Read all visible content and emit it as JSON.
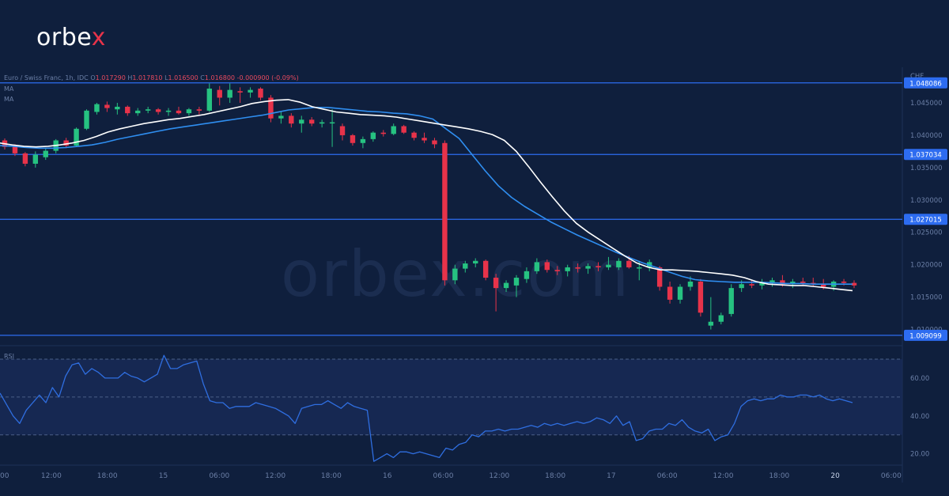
{
  "brand": {
    "name_main": "orbe",
    "name_accent": "x"
  },
  "watermark": "orbex.com",
  "legend": {
    "symbol": "Euro / Swiss Franc, 1h, IDC",
    "o_label": "O",
    "o": "1.017290",
    "h_label": "H",
    "h": "1.017810",
    "l_label": "L",
    "l": "1.016500",
    "c_label": "C",
    "c": "1.016800",
    "change": "-0.000900 (-0.09%)",
    "ma1": "MA",
    "ma2": "MA",
    "rsi": "RSI"
  },
  "colors": {
    "background": "#0f1f3d",
    "up": "#26c281",
    "down": "#e8334a",
    "ma_fast": "#ffffff",
    "ma_slow": "#2f8ef0",
    "rsi_line": "#2f6ee0",
    "level_line": "#2d6cf0",
    "label_bg": "#2d6cf0",
    "axis_text": "#6b7fa6"
  },
  "chart_data": [
    {
      "type": "candlestick",
      "title": "",
      "ylabel": "CHF",
      "ylim": [
        1.0075,
        1.0505
      ],
      "yticks": [
        "1.045000",
        "1.040000",
        "1.035000",
        "1.030000",
        "1.025000",
        "1.020000",
        "1.015000",
        "1.010000"
      ],
      "x_tick_labels": [
        "00",
        "12:00",
        "18:00",
        "15",
        "06:00",
        "12:00",
        "18:00",
        "16",
        "06:00",
        "12:00",
        "18:00",
        "17",
        "06:00",
        "12:00",
        "18:00",
        "20",
        "06:00"
      ],
      "x_tick_index": [
        0,
        11,
        23,
        35,
        47,
        59,
        71,
        83,
        95,
        107,
        119,
        131,
        143,
        155,
        167,
        179,
        191
      ],
      "horizontal_levels": [
        {
          "value": 1.048086,
          "label": "1.048086"
        },
        {
          "value": 1.037034,
          "label": "1.037034"
        },
        {
          "value": 1.027015,
          "label": "1.027015"
        },
        {
          "value": 1.009099,
          "label": "1.009099"
        }
      ],
      "candles": [
        [
          1.0392,
          1.0395,
          1.0378,
          1.0382
        ],
        [
          1.0384,
          1.0386,
          1.0368,
          1.0372
        ],
        [
          1.0372,
          1.0374,
          1.0352,
          1.0356
        ],
        [
          1.0356,
          1.0375,
          1.035,
          1.037
        ],
        [
          1.0366,
          1.038,
          1.0362,
          1.0376
        ],
        [
          1.0376,
          1.0394,
          1.0372,
          1.0392
        ],
        [
          1.0392,
          1.0396,
          1.038,
          1.0384
        ],
        [
          1.0384,
          1.0412,
          1.0382,
          1.041
        ],
        [
          1.041,
          1.044,
          1.0408,
          1.0438
        ],
        [
          1.0436,
          1.045,
          1.0432,
          1.0448
        ],
        [
          1.0447,
          1.0452,
          1.0436,
          1.0442
        ],
        [
          1.044,
          1.045,
          1.0432,
          1.0444
        ],
        [
          1.0444,
          1.0446,
          1.043,
          1.0434
        ],
        [
          1.0434,
          1.0442,
          1.043,
          1.0438
        ],
        [
          1.0438,
          1.0444,
          1.0434,
          1.044
        ],
        [
          1.044,
          1.0442,
          1.0432,
          1.0436
        ],
        [
          1.0436,
          1.0442,
          1.043,
          1.0438
        ],
        [
          1.0438,
          1.0444,
          1.0432,
          1.0434
        ],
        [
          1.0434,
          1.0442,
          1.043,
          1.044
        ],
        [
          1.044,
          1.0444,
          1.0432,
          1.0438
        ],
        [
          1.0438,
          1.048,
          1.0436,
          1.0472
        ],
        [
          1.047,
          1.0476,
          1.0446,
          1.0458
        ],
        [
          1.0458,
          1.048,
          1.045,
          1.047
        ],
        [
          1.0468,
          1.0474,
          1.045,
          1.0466
        ],
        [
          1.0466,
          1.0474,
          1.0458,
          1.047
        ],
        [
          1.0472,
          1.0474,
          1.0454,
          1.0458
        ],
        [
          1.0458,
          1.0462,
          1.042,
          1.0426
        ],
        [
          1.0426,
          1.0436,
          1.0418,
          1.043
        ],
        [
          1.043,
          1.0434,
          1.0412,
          1.0418
        ],
        [
          1.0418,
          1.043,
          1.0404,
          1.0424
        ],
        [
          1.0424,
          1.0428,
          1.0414,
          1.0418
        ],
        [
          1.0418,
          1.0424,
          1.0412,
          1.042
        ],
        [
          1.042,
          1.044,
          1.0382,
          1.042
        ],
        [
          1.0414,
          1.0418,
          1.0392,
          1.04
        ],
        [
          1.04,
          1.0402,
          1.0384,
          1.0388
        ],
        [
          1.0388,
          1.0398,
          1.038,
          1.0394
        ],
        [
          1.0394,
          1.0406,
          1.039,
          1.0404
        ],
        [
          1.0404,
          1.0408,
          1.0398,
          1.0402
        ],
        [
          1.0402,
          1.0418,
          1.04,
          1.0414
        ],
        [
          1.0414,
          1.0416,
          1.0402,
          1.0404
        ],
        [
          1.0404,
          1.0406,
          1.0392,
          1.0396
        ],
        [
          1.0396,
          1.0404,
          1.0388,
          1.0392
        ],
        [
          1.0392,
          1.0396,
          1.038,
          1.0386
        ],
        [
          1.0388,
          1.0392,
          1.0168,
          1.0176
        ],
        [
          1.0176,
          1.02,
          1.017,
          1.0194
        ],
        [
          1.0194,
          1.0206,
          1.0188,
          1.0202
        ],
        [
          1.0202,
          1.021,
          1.0196,
          1.0206
        ],
        [
          1.0206,
          1.0208,
          1.0176,
          1.018
        ],
        [
          1.018,
          1.0186,
          1.0128,
          1.0164
        ],
        [
          1.0164,
          1.0176,
          1.0158,
          1.0172
        ],
        [
          1.0168,
          1.0184,
          1.015,
          1.018
        ],
        [
          1.0178,
          1.0196,
          1.0172,
          1.019
        ],
        [
          1.019,
          1.021,
          1.0186,
          1.0204
        ],
        [
          1.0204,
          1.0208,
          1.0188,
          1.0192
        ],
        [
          1.0192,
          1.0198,
          1.0184,
          1.019
        ],
        [
          1.019,
          1.02,
          1.0182,
          1.0196
        ],
        [
          1.0196,
          1.0202,
          1.0188,
          1.0194
        ],
        [
          1.0194,
          1.0202,
          1.0186,
          1.0198
        ],
        [
          1.0198,
          1.0204,
          1.019,
          1.0196
        ],
        [
          1.0196,
          1.0212,
          1.0192,
          1.02
        ],
        [
          1.0196,
          1.021,
          1.0192,
          1.0206
        ],
        [
          1.0206,
          1.0214,
          1.0194,
          1.0196
        ],
        [
          1.0196,
          1.0206,
          1.0176,
          1.0196
        ],
        [
          1.0196,
          1.0208,
          1.019,
          1.0204
        ],
        [
          1.0196,
          1.0198,
          1.016,
          1.0166
        ],
        [
          1.0166,
          1.0174,
          1.014,
          1.0146
        ],
        [
          1.0146,
          1.017,
          1.014,
          1.0166
        ],
        [
          1.0166,
          1.0182,
          1.016,
          1.0174
        ],
        [
          1.0174,
          1.0178,
          1.012,
          1.0126
        ],
        [
          1.0106,
          1.015,
          1.01,
          1.0112
        ],
        [
          1.0112,
          1.0126,
          1.0108,
          1.0122
        ],
        [
          1.0124,
          1.017,
          1.012,
          1.0164
        ],
        [
          1.0164,
          1.0176,
          1.0158,
          1.017
        ],
        [
          1.017,
          1.0176,
          1.0164,
          1.0168
        ],
        [
          1.0168,
          1.0178,
          1.0162,
          1.0172
        ],
        [
          1.0172,
          1.018,
          1.0166,
          1.0176
        ],
        [
          1.0176,
          1.0184,
          1.0166,
          1.017
        ],
        [
          1.017,
          1.0178,
          1.0164,
          1.0174
        ],
        [
          1.0174,
          1.018,
          1.0168,
          1.0172
        ],
        [
          1.0172,
          1.018,
          1.0166,
          1.017
        ],
        [
          1.017,
          1.0178,
          1.0162,
          1.0166
        ],
        [
          1.0166,
          1.0176,
          1.016,
          1.0174
        ],
        [
          1.0174,
          1.0178,
          1.0168,
          1.0172
        ],
        [
          1.0172,
          1.0176,
          1.0164,
          1.0168
        ]
      ],
      "ma_fast": [
        1.0388,
        1.0385,
        1.0383,
        1.0382,
        1.0383,
        1.0385,
        1.0388,
        1.0392,
        1.0398,
        1.0405,
        1.041,
        1.0414,
        1.0418,
        1.0421,
        1.0424,
        1.0426,
        1.0429,
        1.0432,
        1.0436,
        1.044,
        1.0444,
        1.0449,
        1.0452,
        1.0454,
        1.0455,
        1.0451,
        1.0444,
        1.044,
        1.0436,
        1.0434,
        1.0432,
        1.0431,
        1.043,
        1.0428,
        1.0425,
        1.0422,
        1.0419,
        1.0416,
        1.0413,
        1.041,
        1.0406,
        1.0401,
        1.0392,
        1.0375,
        1.0352,
        1.0328,
        1.0305,
        1.0283,
        1.0264,
        1.025,
        1.0238,
        1.0226,
        1.0214,
        1.0203,
        1.0196,
        1.0192,
        1.0192,
        1.0191,
        1.019,
        1.0188,
        1.0186,
        1.0184,
        1.018,
        1.0174,
        1.017,
        1.0169,
        1.0168,
        1.0168,
        1.0166,
        1.0164,
        1.0162,
        1.016
      ],
      "ma_slow": [
        1.0384,
        1.0383,
        1.0381,
        1.038,
        1.038,
        1.0381,
        1.0383,
        1.0385,
        1.0389,
        1.0394,
        1.0398,
        1.0402,
        1.0406,
        1.041,
        1.0413,
        1.0416,
        1.0419,
        1.0422,
        1.0425,
        1.0428,
        1.0431,
        1.0435,
        1.0439,
        1.0441,
        1.0443,
        1.0443,
        1.0441,
        1.0439,
        1.0437,
        1.0436,
        1.0434,
        1.0433,
        1.043,
        1.0425,
        1.041,
        1.0395,
        1.037,
        1.0345,
        1.0322,
        1.0304,
        1.029,
        1.0278,
        1.0266,
        1.0256,
        1.0246,
        1.0237,
        1.0228,
        1.0219,
        1.0211,
        1.0203,
        1.0196,
        1.0189,
        1.0182,
        1.0177,
        1.0175,
        1.0174,
        1.0173,
        1.0173,
        1.0173,
        1.0172,
        1.0171,
        1.0171,
        1.017,
        1.017,
        1.017,
        1.017
      ]
    },
    {
      "type": "line",
      "title": "",
      "series_label": "RSI",
      "ylim": [
        14,
        75
      ],
      "yticks": [
        "60.00",
        "40.00",
        "20.00"
      ],
      "reference_levels": [
        70,
        50,
        30
      ],
      "values": [
        52,
        46,
        40,
        36,
        43,
        47,
        51,
        47,
        55,
        50,
        61,
        67,
        68,
        62,
        65,
        63,
        60,
        60,
        60,
        63,
        61,
        60,
        58,
        60,
        62,
        72,
        65,
        65,
        67,
        68,
        69,
        57,
        48,
        47,
        47,
        44,
        45,
        45,
        45,
        47,
        46,
        45,
        44,
        42,
        40,
        36,
        44,
        45,
        46,
        46,
        48,
        46,
        44,
        47,
        45,
        44,
        43,
        16,
        18,
        20,
        18,
        21,
        21,
        20,
        21,
        20,
        19,
        18,
        23,
        22,
        25,
        26,
        30,
        29,
        32,
        32,
        33,
        32,
        33,
        33,
        34,
        35,
        34,
        36,
        35,
        36,
        35,
        36,
        37,
        36,
        37,
        39,
        38,
        36,
        40,
        35,
        37,
        27,
        28,
        32,
        33,
        33,
        36,
        35,
        38,
        34,
        32,
        31,
        33,
        27,
        29,
        30,
        36,
        45,
        48,
        49,
        48,
        49,
        49,
        51,
        50,
        50,
        51,
        51,
        50,
        51,
        49,
        48,
        49,
        48,
        47
      ]
    }
  ]
}
